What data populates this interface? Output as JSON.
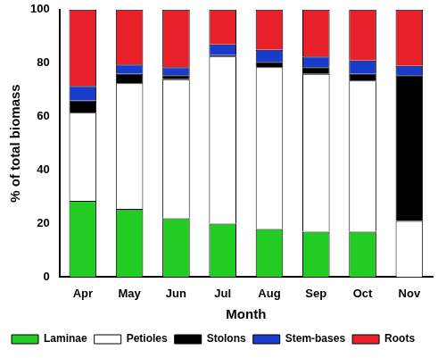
{
  "chart_data": {
    "type": "bar",
    "stacked": true,
    "grid": false,
    "legend": "bottom",
    "x_label": "Month",
    "y_label": "% of total biomass",
    "categories": [
      "Apr",
      "May",
      "Jun",
      "Jul",
      "Aug",
      "Sep",
      "Oct",
      "Nov"
    ],
    "series": [
      {
        "name": "Laminae",
        "color": "#22cc22",
        "values": [
          28.5,
          25.5,
          22,
          20,
          18,
          17,
          17,
          0
        ]
      },
      {
        "name": "Petioles",
        "color": "#ffffff",
        "values": [
          33,
          47,
          52,
          62.5,
          60.5,
          59,
          56.5,
          21
        ]
      },
      {
        "name": "Stolons",
        "color": "#000000",
        "values": [
          4.5,
          3.5,
          1.5,
          0.5,
          2,
          2.5,
          2.5,
          54.5
        ]
      },
      {
        "name": "Stem-bases",
        "color": "#1a3ccc",
        "values": [
          5.5,
          3.5,
          3,
          4,
          4.5,
          4,
          5,
          3.5
        ]
      },
      {
        "name": "Roots",
        "color": "#e8202a",
        "values": [
          28.5,
          20.5,
          21.5,
          13,
          15,
          17.5,
          19,
          21
        ]
      }
    ],
    "ylim": [
      0,
      100
    ],
    "yticks": [
      0,
      20,
      40,
      60,
      80,
      100
    ]
  }
}
